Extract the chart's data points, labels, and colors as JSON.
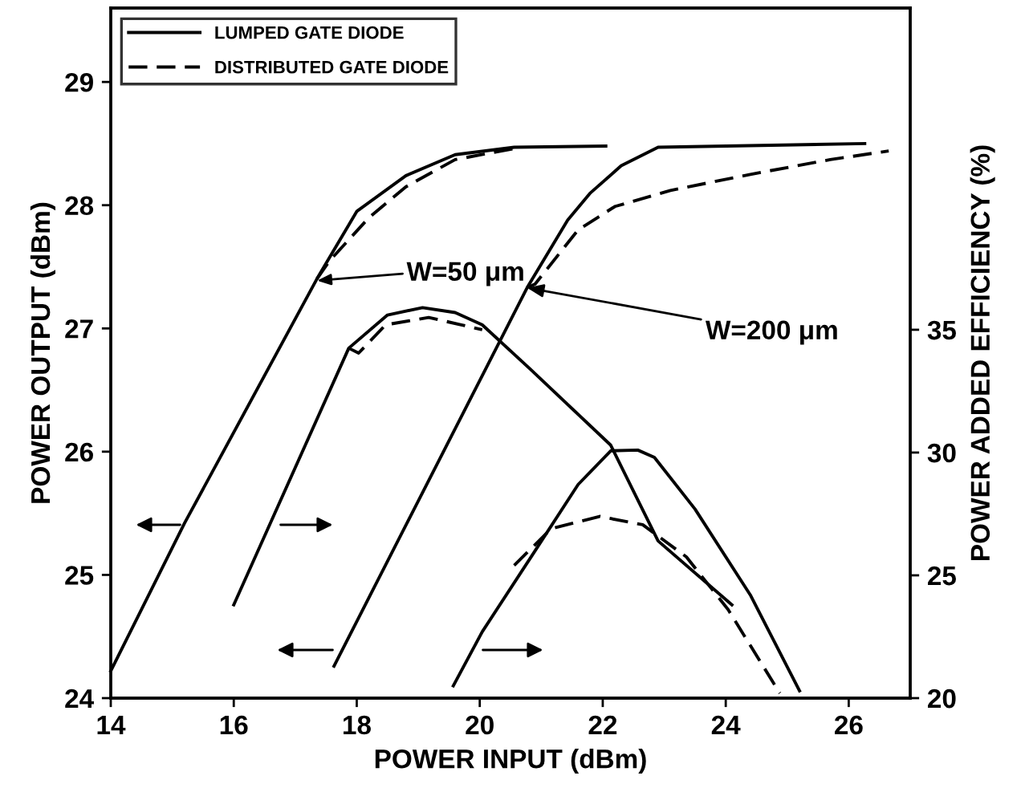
{
  "chart_data": {
    "type": "line",
    "xlabel": "POWER INPUT (dBm)",
    "ylabel": "POWER OUTPUT (dBm)",
    "y2label": "POWER ADDED EFFICIENCY (%)",
    "xlim": [
      14,
      27
    ],
    "xticks": [
      14,
      16,
      18,
      20,
      22,
      24,
      26
    ],
    "ylim": [
      24,
      29.6
    ],
    "yticks": [
      24,
      25,
      26,
      27,
      28,
      29
    ],
    "y2lim": [
      20,
      48.1
    ],
    "y2ticks": [
      20,
      25,
      30,
      35
    ],
    "legend": "top left",
    "grid": false,
    "marker": "none",
    "series": [
      {
        "name": "LUMPED GATE DIODE",
        "color": "#000000",
        "line_style": "solid",
        "x": [
          14.0,
          15.2,
          17.35,
          18.0,
          18.8,
          19.6,
          20.56,
          22.05
        ],
        "values": [
          24.22,
          25.42,
          27.4,
          27.95,
          28.24,
          28.41,
          28.47,
          28.48
        ]
      },
      {
        "name": "DISTRIBUTED GATE DIODE",
        "color": "#000000",
        "line_style": "dashed",
        "x": [
          17.35,
          17.56,
          18.2,
          18.8,
          19.6,
          20.56
        ],
        "values": [
          27.4,
          27.55,
          27.9,
          28.15,
          28.37,
          28.46
        ]
      },
      {
        "color": "#000000",
        "line_style": "solid",
        "x": [
          17.63,
          20.77,
          21.43,
          21.8,
          22.3,
          22.9,
          26.26
        ],
        "values": [
          24.26,
          27.33,
          27.88,
          28.1,
          28.32,
          28.47,
          28.5
        ]
      },
      {
        "color": "#000000",
        "line_style": "dashed",
        "x": [
          20.77,
          20.9,
          21.6,
          22.2,
          23.1,
          24.4,
          25.7,
          26.65
        ],
        "values": [
          27.33,
          27.36,
          27.8,
          27.99,
          28.12,
          28.25,
          28.37,
          28.44
        ]
      },
      {
        "color": "#000000",
        "line_style": "solid",
        "axis": "y2",
        "x": [
          16.0,
          17.87,
          18.5,
          19.07,
          19.6,
          20.04,
          20.82,
          22.13,
          22.9,
          24.1
        ],
        "values": [
          23.8,
          34.25,
          35.6,
          35.9,
          35.7,
          35.2,
          33.4,
          30.3,
          26.4,
          23.8
        ]
      },
      {
        "color": "#000000",
        "line_style": "dashed",
        "axis": "y2",
        "x": [
          17.87,
          18.03,
          18.47,
          19.17,
          19.7,
          20.04
        ],
        "values": [
          34.25,
          34.05,
          35.2,
          35.5,
          35.2,
          35.0
        ]
      },
      {
        "color": "#000000",
        "line_style": "solid",
        "axis": "y2",
        "x": [
          19.57,
          20.04,
          20.9,
          21.6,
          22.13,
          22.57,
          22.84,
          23.5,
          24.4,
          25.2
        ],
        "values": [
          20.5,
          22.7,
          26.0,
          28.7,
          30.07,
          30.1,
          29.8,
          27.7,
          24.2,
          20.3
        ]
      },
      {
        "color": "#000000",
        "line_style": "dashed",
        "axis": "y2",
        "x": [
          20.56,
          21.16,
          21.95,
          22.65,
          23.36,
          24.04,
          24.88
        ],
        "values": [
          25.4,
          26.9,
          27.4,
          27.06,
          25.75,
          23.6,
          20.2
        ]
      }
    ],
    "annotations": [
      "W=50 μm",
      {
        "text": "W=200 μm",
        "x": 20.77,
        "y": 27.33
      }
    ]
  }
}
